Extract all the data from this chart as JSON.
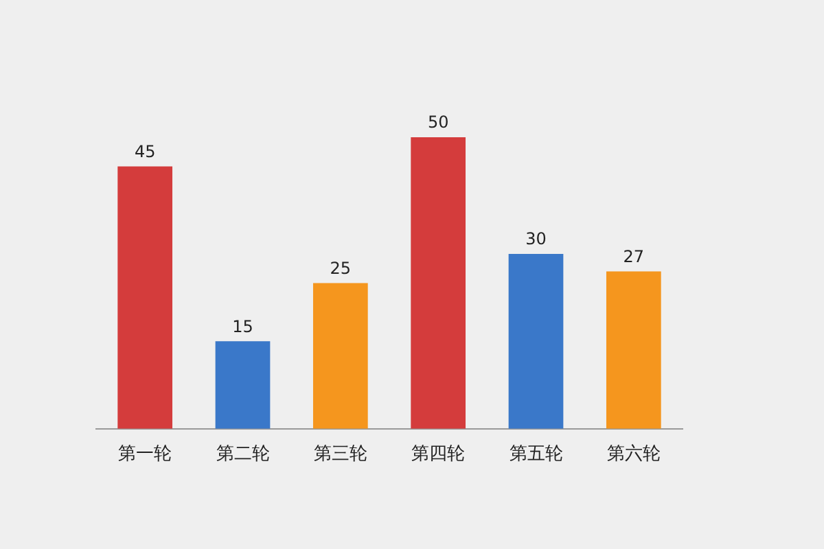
{
  "chart_data": {
    "type": "bar",
    "categories": [
      "第一轮",
      "第二轮",
      "第三轮",
      "第四轮",
      "第五轮",
      "第六轮"
    ],
    "values": [
      45,
      15,
      25,
      50,
      30,
      27
    ],
    "colors": [
      "#d43c3c",
      "#3a78c9",
      "#f5961e",
      "#d43c3c",
      "#3a78c9",
      "#f5961e"
    ],
    "data_labels": true,
    "grid": false,
    "legend": false
  }
}
